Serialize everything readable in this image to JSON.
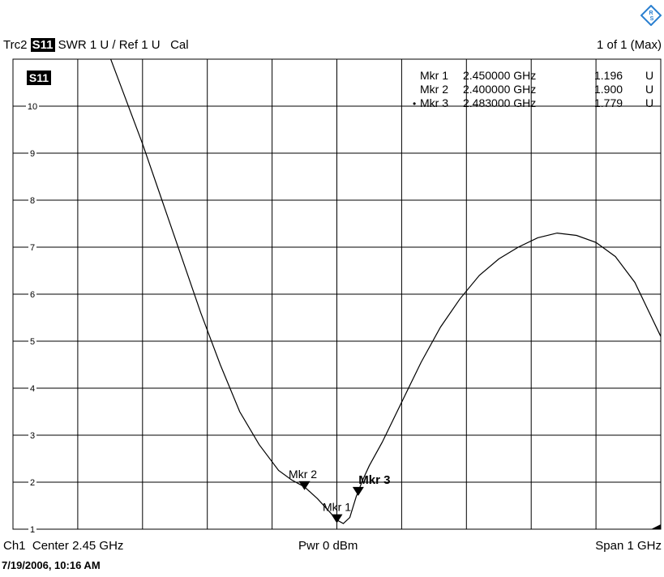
{
  "header": {
    "trace": "Trc2",
    "param": "S11",
    "format": "SWR",
    "scale": "1 U /",
    "ref": "Ref 1 U",
    "cal": "Cal",
    "page": "1 of 1 (Max)"
  },
  "footer": {
    "channel": "Ch1",
    "center": "Center  2.45 GHz",
    "power": "Pwr  0 dBm",
    "span": "Span  1 GHz",
    "timestamp": "7/19/2006, 10:16 AM"
  },
  "logo_icon": "rohde-schwarz-logo",
  "colors": {
    "grid": "#000000",
    "trace": "#000000",
    "badge_bg": "#000000"
  },
  "chart_data": {
    "type": "line",
    "title": "",
    "xlabel": "",
    "ylabel": "",
    "trace_label": "S11",
    "xlim": [
      1.95,
      2.95
    ],
    "ylim": [
      1,
      11
    ],
    "grid": true,
    "y_ticks": [
      "1",
      "2",
      "3",
      "4",
      "5",
      "6",
      "7",
      "8",
      "9",
      "10"
    ],
    "series": [
      {
        "x": [
          2.09,
          2.12,
          2.15,
          2.18,
          2.21,
          2.24,
          2.27,
          2.3,
          2.33,
          2.36,
          2.38,
          2.4,
          2.42,
          2.44,
          2.45,
          2.46,
          2.47,
          2.48,
          2.49,
          2.5,
          2.52,
          2.55,
          2.58,
          2.61,
          2.64,
          2.67,
          2.7,
          2.73,
          2.76,
          2.79,
          2.82,
          2.85,
          2.88,
          2.91,
          2.95
        ],
        "y": [
          11.4,
          10.3,
          9.2,
          8.0,
          6.8,
          5.6,
          4.5,
          3.5,
          2.8,
          2.25,
          2.05,
          1.9,
          1.65,
          1.35,
          1.196,
          1.12,
          1.25,
          1.7,
          2.05,
          2.35,
          2.85,
          3.7,
          4.55,
          5.3,
          5.9,
          6.4,
          6.75,
          7.0,
          7.2,
          7.3,
          7.25,
          7.1,
          6.8,
          6.25,
          5.1
        ]
      }
    ],
    "markers": [
      {
        "name": "Mkr 1",
        "freq": "2.450000 GHz",
        "value": "1.196",
        "unit": "U",
        "x": 2.45,
        "y": 1.196,
        "active": false
      },
      {
        "name": "Mkr 2",
        "freq": "2.400000 GHz",
        "value": "1.900",
        "unit": "U",
        "x": 2.4,
        "y": 1.9,
        "active": false
      },
      {
        "name": "Mkr 3",
        "freq": "2.483000 GHz",
        "value": "1.779",
        "unit": "U",
        "x": 2.483,
        "y": 1.779,
        "active": true
      }
    ]
  }
}
